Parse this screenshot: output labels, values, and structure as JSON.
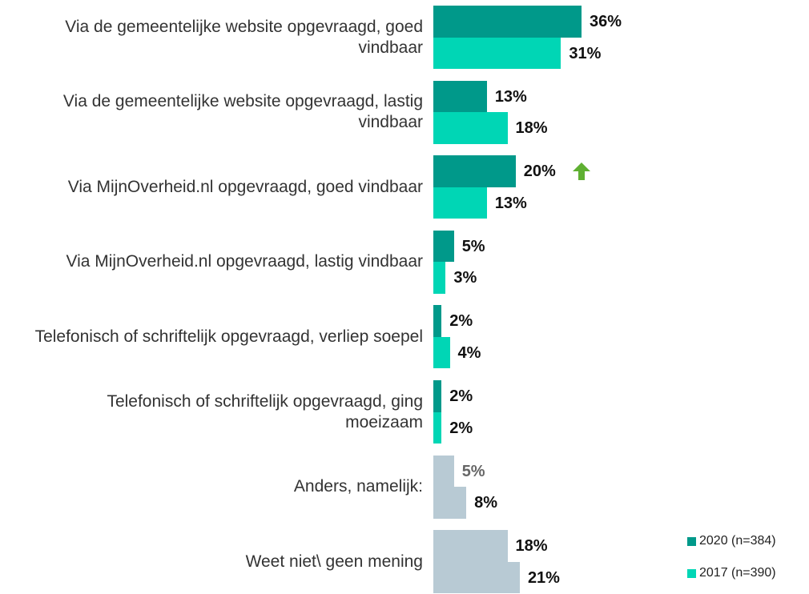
{
  "chart_data": {
    "type": "bar",
    "orientation": "horizontal",
    "categories": [
      "Via de gemeentelijke website opgevraagd, goed vindbaar",
      "Via de gemeentelijke website opgevraagd, lastig vindbaar",
      "Via MijnOverheid.nl opgevraagd, goed vindbaar",
      "Via MijnOverheid.nl opgevraagd, lastig vindbaar",
      "Telefonisch of schriftelijk opgevraagd, verliep soepel",
      "Telefonisch of schriftelijk opgevraagd, ging moeizaam",
      "Anders, namelijk:",
      "Weet niet\\ geen mening"
    ],
    "series": [
      {
        "name": "2020 (n=384)",
        "color": "#00998a",
        "values": [
          36,
          13,
          20,
          5,
          2,
          2,
          5,
          18
        ],
        "value_labels": [
          "36%",
          "13%",
          "20%",
          "5%",
          "2%",
          "2%",
          "5%",
          "18%"
        ],
        "colors": [
          "#00998a",
          "#00998a",
          "#00998a",
          "#00998a",
          "#00998a",
          "#00998a",
          "#b8cad4",
          "#b8cad4"
        ]
      },
      {
        "name": "2017 (n=390)",
        "color": "#00d6b5",
        "values": [
          31,
          18,
          13,
          3,
          4,
          2,
          8,
          21
        ],
        "value_labels": [
          "31%",
          "18%",
          "13%",
          "3%",
          "4%",
          "2%",
          "8%",
          "21%"
        ],
        "colors": [
          "#00d6b5",
          "#00d6b5",
          "#00d6b5",
          "#00d6b5",
          "#00d6b5",
          "#00d6b5",
          "#b8cad4",
          "#b8cad4"
        ]
      }
    ]
  }
}
